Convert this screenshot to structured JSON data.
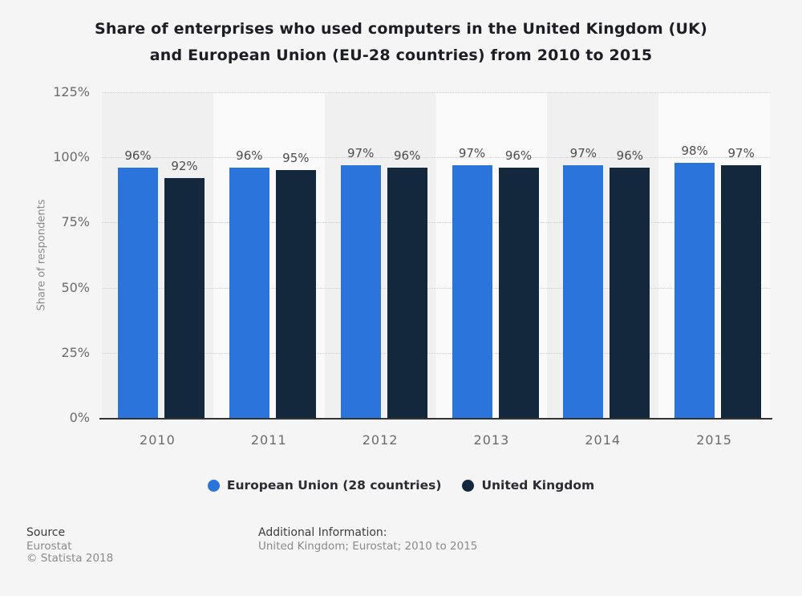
{
  "title": {
    "line1": "Share of enterprises who used computers in the United Kingdom (UK)",
    "line2": "and European Union (EU-28 countries) from 2010 to 2015"
  },
  "chart_data": {
    "type": "bar",
    "categories": [
      "2010",
      "2011",
      "2012",
      "2013",
      "2014",
      "2015"
    ],
    "series": [
      {
        "name": "European Union (28 countries)",
        "color": "#2b74dc",
        "values": [
          96,
          96,
          97,
          97,
          97,
          98
        ]
      },
      {
        "name": "United Kingdom",
        "color": "#13283d",
        "values": [
          92,
          95,
          96,
          96,
          96,
          97
        ]
      }
    ],
    "value_suffix": "%",
    "ylabel": "Share of respondents",
    "xlabel": "",
    "ylim": [
      0,
      125
    ],
    "ytick_step": 25,
    "ytick_labels": [
      "0%",
      "25%",
      "50%",
      "75%",
      "100%",
      "125%"
    ],
    "grid": "dotted-horizontal",
    "legend_position": "bottom",
    "band_color_even": "#f0f0f1",
    "band_color_odd": "#fafafa"
  },
  "legend": {
    "items": [
      {
        "label": "European Union (28 countries)",
        "color": "#2b74dc"
      },
      {
        "label": "United Kingdom",
        "color": "#13283d"
      }
    ]
  },
  "footer": {
    "source_label": "Source",
    "source_name": "Eurostat",
    "copyright": "© Statista 2018",
    "additional_label": "Additional Information:",
    "additional_text": "United Kingdom; Eurostat; 2010 to 2015"
  },
  "colors": {
    "background": "#f5f5f5",
    "title_text": "#1d1d24",
    "axis_line": "#333333",
    "gridline": "#cfcfcf",
    "tick_text": "#6b6b6b",
    "value_label_text": "#4d4d4d"
  }
}
